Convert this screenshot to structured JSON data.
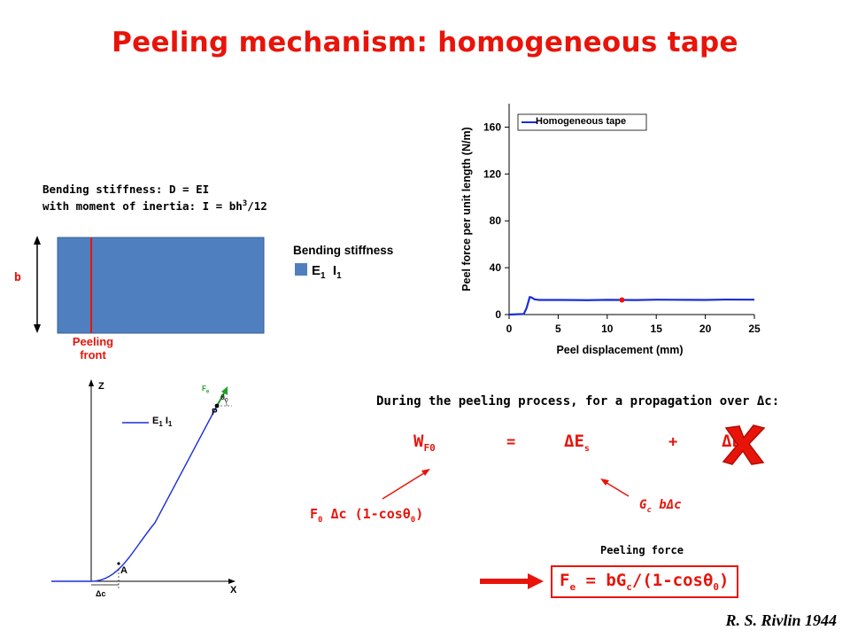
{
  "title": "Peeling mechanism: homogeneous tape",
  "bending": {
    "line1": "Bending stiffness: D = EI",
    "line2_prefix": "with moment of inertia: I = bh",
    "line2_sup": "3",
    "line2_suffix": "/12",
    "b_label": "b",
    "front_label_1": "Peeling",
    "front_label_2": "front",
    "legend_title": "Bending stiffness",
    "legend_E": "E",
    "legend_E_sub": "1",
    "legend_I": "I",
    "legend_I_sub": "1",
    "colors": {
      "tape": "#4f7fbe",
      "front": "#e8140a"
    }
  },
  "geometry_figure": {
    "z_label": "Z",
    "x_label": "X",
    "legend_E": "E",
    "legend_E_sub": "1",
    "legend_I": "I",
    "legend_I_sub": "1",
    "point_A": "A",
    "point_P": "P",
    "force_label": "F",
    "force_sub": "e",
    "theta_label": "θ",
    "theta_sub": "0",
    "delta_c": "Δc"
  },
  "chart_data": {
    "type": "line",
    "title": "",
    "xlabel": "Peel displacement (mm)",
    "ylabel": "Peel force per unit length (N/m)",
    "xlim": [
      0,
      25
    ],
    "ylim": [
      0,
      180
    ],
    "xticks": [
      "0",
      "5",
      "10",
      "15",
      "20",
      "25"
    ],
    "yticks": [
      "0",
      "40",
      "80",
      "120",
      "160"
    ],
    "grid": false,
    "legend": "top-left",
    "series": [
      {
        "name": "Homogeneous tape",
        "color": "#1a2ed6",
        "x": [
          0,
          1.5,
          1.8,
          2.0,
          2.1,
          2.3,
          2.6,
          3,
          5,
          8,
          10,
          11.5,
          13,
          15,
          18,
          20,
          22,
          25
        ],
        "y": [
          0,
          0.5,
          6,
          12,
          15,
          14.5,
          13,
          12.5,
          12.5,
          12.3,
          12.6,
          12.5,
          12.4,
          12.7,
          12.6,
          12.5,
          12.8,
          12.7
        ]
      }
    ],
    "marker": {
      "x": 11.5,
      "y": 12.5,
      "color": "#e8140a"
    }
  },
  "process": {
    "statement": "During the peeling process, for a propagation over Δc:",
    "W": "W",
    "W_sub": "F0",
    "eq1": "=",
    "dEs": "ΔE",
    "dEs_sub": "s",
    "plus": "+",
    "dEel": "ΔE",
    "dEel_sub": "el",
    "cross_color": "#e8140a",
    "f0_expr_a": "F",
    "f0_expr_a_sub": "0",
    "f0_expr_b": " Δc (1-cosθ",
    "f0_expr_b_sub": "0",
    "f0_expr_c": ")",
    "gc_expr": "G",
    "gc_sub": "c",
    "gc_rest": " bΔc"
  },
  "result": {
    "label": "Peeling force",
    "f": "F",
    "f_sub": "e",
    "mid": " = bG",
    "mid_sub": "c",
    "rest": "/(1-cosθ",
    "rest_sub": "0",
    "end": ")"
  },
  "author": "R. S. Rivlin 1944"
}
